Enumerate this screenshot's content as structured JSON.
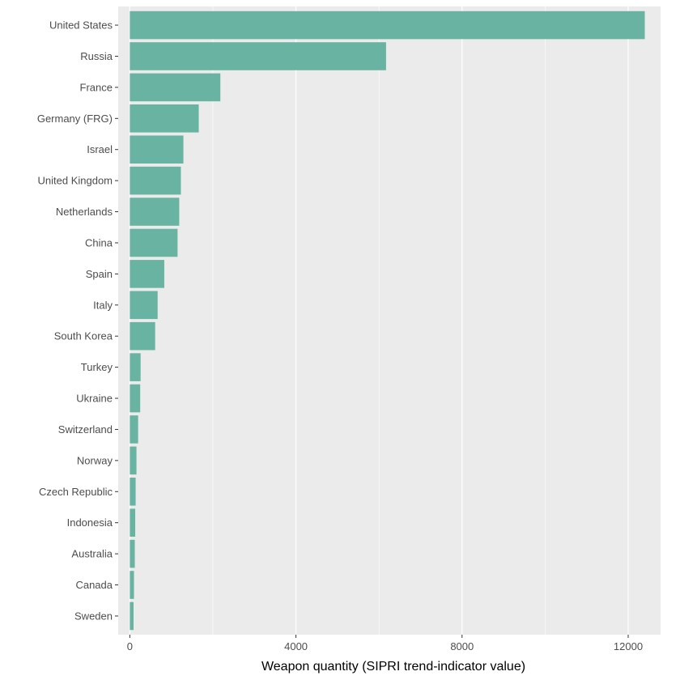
{
  "chart_data": {
    "type": "bar",
    "orientation": "horizontal",
    "title": "",
    "xlabel": "Weapon quantity (SIPRI trend-indicator value)",
    "ylabel": "",
    "categories": [
      "United States",
      "Russia",
      "France",
      "Germany (FRG)",
      "Israel",
      "United Kingdom",
      "Netherlands",
      "China",
      "Spain",
      "Italy",
      "South Korea",
      "Turkey",
      "Ukraine",
      "Switzerland",
      "Norway",
      "Czech Republic",
      "Indonesia",
      "Australia",
      "Canada",
      "Sweden"
    ],
    "values": [
      12400,
      6170,
      2180,
      1660,
      1290,
      1230,
      1190,
      1150,
      830,
      670,
      610,
      260,
      250,
      200,
      160,
      140,
      130,
      120,
      100,
      90
    ],
    "xlim": [
      -280,
      12780
    ],
    "xticks": [
      0,
      4000,
      8000,
      12000
    ],
    "xtick_labels": [
      "0",
      "4000",
      "8000",
      "12000"
    ],
    "grid": true,
    "legend": "none",
    "colors": {
      "bar": "#69b3a2",
      "panel": "#ebebeb",
      "grid": "#ffffff",
      "tick_text": "#4d4d4d",
      "tick_mark": "#333333"
    }
  }
}
